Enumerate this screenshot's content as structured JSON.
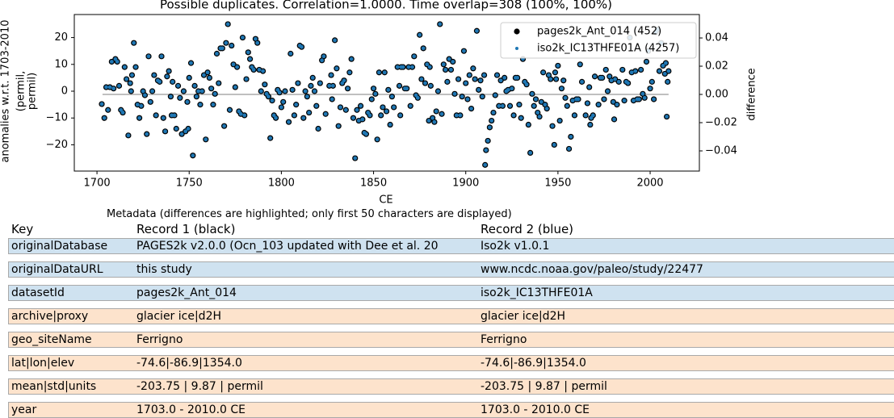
{
  "chart_data": {
    "type": "scatter",
    "title": "Possible duplicates. Correlation=1.0000. Time overlap=308 (100%, 100%)",
    "xlabel": "CE",
    "ylabel": [
      "anomalies w.r.t. 1703-2010",
      "(permil,",
      "permil)"
    ],
    "y2label": "difference",
    "xlim": [
      1687.7,
      2026.7
    ],
    "ylim": [
      -29.8,
      28.6
    ],
    "y2lim": [
      -0.0543,
      0.0566
    ],
    "xticks": [
      1700,
      1750,
      1800,
      1850,
      1900,
      1950,
      2000
    ],
    "yticks": [
      {
        "value": -20,
        "label": "−20"
      },
      {
        "value": -10,
        "label": "−10"
      },
      0,
      10,
      20
    ],
    "y2ticks": [
      {
        "value": -0.04,
        "label": "−0.04"
      },
      {
        "value": -0.02,
        "label": "−0.02"
      },
      {
        "value": 0,
        "label": "0.00"
      },
      0.02,
      0.04
    ],
    "legend": "upper right",
    "x": [
      1702.6,
      1704,
      1705,
      1706,
      1707,
      1708,
      1709,
      1710,
      1711,
      1712,
      1713,
      1714,
      1715,
      1716,
      1717,
      1718,
      1718.5,
      1719,
      1720,
      1721,
      1722,
      1723,
      1724,
      1725,
      1726,
      1727,
      1728,
      1729,
      1730,
      1731,
      1732,
      1733,
      1734,
      1735,
      1736,
      1737,
      1738,
      1739,
      1740,
      1740.5,
      1741,
      1742,
      1743,
      1744,
      1745,
      1746,
      1747,
      1748,
      1749,
      1749.5,
      1750,
      1751,
      1752,
      1753,
      1754,
      1755,
      1756,
      1757,
      1758,
      1759,
      1760,
      1761,
      1762,
      1763,
      1764,
      1765,
      1766,
      1767,
      1768,
      1769,
      1770,
      1771,
      1772,
      1773,
      1774,
      1775,
      1776,
      1777,
      1778,
      1779,
      1780,
      1781,
      1782,
      1783,
      1784,
      1785,
      1786,
      1787,
      1788,
      1789,
      1790,
      1791,
      1792,
      1793,
      1794,
      1795,
      1796,
      1797,
      1798,
      1799,
      1800,
      1801,
      1802,
      1804,
      1805,
      1806,
      1807,
      1808,
      1809,
      1810,
      1811,
      1812,
      1813,
      1814,
      1815,
      1816,
      1817,
      1818,
      1819,
      1820,
      1821,
      1822,
      1823,
      1824,
      1826,
      1827,
      1827.5,
      1828,
      1829,
      1830,
      1831,
      1832,
      1833,
      1834,
      1835,
      1836,
      1837,
      1838,
      1839,
      1840,
      1841,
      1842,
      1843,
      1844,
      1845,
      1846,
      1847,
      1848,
      1849,
      1850,
      1851,
      1852,
      1853,
      1854,
      1855,
      1856,
      1857,
      1858,
      1859,
      1860,
      1861,
      1863,
      1864,
      1864.5,
      1865,
      1866,
      1867,
      1868,
      1869,
      1870,
      1871,
      1872,
      1873,
      1874,
      1875,
      1876,
      1877,
      1878,
      1879,
      1880,
      1880.5,
      1881,
      1882,
      1883,
      1884,
      1885,
      1886,
      1887,
      1888,
      1889,
      1890,
      1891,
      1892,
      1893,
      1894,
      1895,
      1896,
      1897,
      1898,
      1899,
      1900,
      1901,
      1902,
      1903,
      1904,
      1905,
      1906,
      1907,
      1908,
      1909,
      1910,
      1910.5,
      1911,
      1912,
      1913,
      1914,
      1915,
      1916,
      1917,
      1918,
      1919,
      1920,
      1921,
      1922,
      1923,
      1924,
      1925,
      1926,
      1927,
      1928,
      1929,
      1930,
      1931,
      1932,
      1933,
      1934,
      1935,
      1936,
      1937,
      1938,
      1939,
      1940,
      1941,
      1942,
      1943,
      1944,
      1945,
      1946,
      1947,
      1948,
      1948.5,
      1949,
      1950,
      1951,
      1952,
      1953,
      1954,
      1955,
      1956,
      1957,
      1958,
      1959,
      1960,
      1961,
      1962,
      1963,
      1965,
      1966,
      1967,
      1967.5,
      1968,
      1969,
      1970,
      1972,
      1973,
      1974,
      1975,
      1976,
      1977,
      1978,
      1979,
      1980,
      1980.5,
      1981,
      1982,
      1983,
      1985,
      1986,
      1987,
      1988,
      1989,
      1990,
      1991,
      1992,
      1993,
      1994,
      1995,
      1996,
      1997,
      1998,
      1999,
      2000,
      2001,
      2002,
      2003,
      2004,
      2005,
      2006,
      2007,
      2008,
      2008.5,
      2009,
      2009.5,
      2010
    ],
    "series": [
      {
        "name": "pages2k_Ant_014 (452)",
        "color": "#000000",
        "values": [
          -4.8,
          -10,
          1.5,
          -7,
          1.5,
          11,
          1,
          12,
          11,
          2,
          -7,
          -8,
          9,
          4.5,
          -16.5,
          3,
          0,
          6,
          18,
          9,
          -5,
          -10,
          -5.5,
          0,
          -1.5,
          -16,
          13,
          -4,
          0,
          6,
          -9,
          4,
          3.5,
          13,
          -10,
          -15,
          5.5,
          7.5,
          -2,
          -9,
          3.5,
          -9,
          -14,
          2,
          -2.5,
          -16,
          0,
          -15,
          -4,
          -14,
          5,
          10.5,
          -24,
          2,
          -2,
          0,
          -5,
          0,
          6,
          -18,
          7,
          5,
          1,
          -5,
          -1,
          14,
          3,
          16,
          16,
          -13,
          18,
          25,
          -7,
          17,
          10,
          1.5,
          9,
          -7.5,
          -8.5,
          20,
          -9,
          4.5,
          14.5,
          12,
          9,
          8,
          19.5,
          18,
          8,
          0,
          7.5,
          2.5,
          -1,
          -2,
          -17.5,
          -3.5,
          -9,
          -10,
          0.5,
          -0.5,
          -6,
          -4,
          0,
          -11.5,
          14,
          0.5,
          -9,
          -5,
          3,
          17,
          16.5,
          -10,
          0,
          -2,
          -8,
          2,
          5,
          0,
          -5.5,
          -14,
          3,
          11.5,
          13,
          -8.5,
          2,
          6,
          -3,
          2,
          19,
          8.5,
          -13,
          -6,
          3,
          4,
          -7,
          1,
          7,
          12,
          -10,
          -25,
          -7,
          -11,
          -5.5,
          -10.5,
          -15.5,
          -16,
          -8,
          -9,
          -3,
          1,
          -1,
          -18,
          7,
          -9,
          -6,
          7,
          -7.5,
          0.5,
          -12.5,
          -2,
          -6,
          9,
          2,
          -9,
          9,
          9,
          1,
          1,
          9,
          -5.5,
          9,
          13,
          -1.5,
          -2.5,
          21,
          4.5,
          16,
          3,
          10,
          -11,
          9,
          2,
          -10,
          -11.5,
          -7.5,
          0,
          25,
          -8.5,
          10,
          8,
          3.5,
          12,
          8,
          11,
          -1,
          -9,
          4.5,
          -9,
          -2,
          15,
          3,
          -3,
          6,
          -6.5,
          8.5,
          4.5,
          22.5,
          0.5,
          4,
          -2,
          6,
          -27.5,
          -22,
          -18.5,
          -13.5,
          -11,
          -8,
          -1.5,
          6,
          -5.5,
          4,
          -5.5,
          5,
          0,
          0.5,
          -5.5,
          1,
          -9,
          5,
          5,
          -5,
          -10,
          12,
          3.5,
          2.5,
          -12.5,
          -23,
          -1,
          -5.5,
          -3,
          -8,
          -9.5,
          -4,
          7,
          -5,
          -6.5,
          6,
          4.5,
          -13,
          -20,
          7,
          4.5,
          9.5,
          -11,
          1,
          4,
          -2.5,
          -5.5,
          -21.5,
          -17,
          -3.5,
          -9,
          -3,
          -3,
          10,
          3.5,
          -9,
          -4.5,
          1.5,
          -12.5,
          -10,
          -9,
          5.5,
          -5,
          5,
          5,
          -3,
          8,
          0,
          5.5,
          4,
          -4,
          -10.5,
          4.5,
          -5,
          3.5,
          8,
          -3.5,
          3.5,
          3,
          20,
          7,
          -3.5,
          7.5,
          -3,
          -3,
          8,
          -1,
          -2.5,
          11,
          15,
          1,
          3.5,
          -3,
          22,
          23,
          7.5,
          18,
          9.5,
          6.5,
          10.5,
          -9.5,
          3.5,
          7.5
        ]
      },
      {
        "name": "iso2k_IC13THFE01A (4257)",
        "color": "#1f77b4",
        "values": [
          -4.8,
          -10,
          1.5,
          -7,
          1.5,
          11,
          1,
          12,
          11,
          2,
          -7,
          -8,
          9,
          4.5,
          -16.5,
          3,
          0,
          6,
          18,
          9,
          -5,
          -10,
          -5.5,
          0,
          -1.5,
          -16,
          13,
          -4,
          0,
          6,
          -9,
          4,
          3.5,
          13,
          -10,
          -15,
          5.5,
          7.5,
          -2,
          -9,
          3.5,
          -9,
          -14,
          2,
          -2.5,
          -16,
          0,
          -15,
          -4,
          -14,
          5,
          10.5,
          -24,
          2,
          -2,
          0,
          -5,
          0,
          6,
          -18,
          7,
          5,
          1,
          -5,
          -1,
          14,
          3,
          16,
          16,
          -13,
          18,
          25,
          -7,
          17,
          10,
          1.5,
          9,
          -7.5,
          -8.5,
          20,
          -9,
          4.5,
          14.5,
          12,
          9,
          8,
          19.5,
          18,
          8,
          0,
          7.5,
          2.5,
          -1,
          -2,
          -17.5,
          -3.5,
          -9,
          -10,
          0.5,
          -0.5,
          -6,
          -4,
          0,
          -11.5,
          14,
          0.5,
          -9,
          -5,
          3,
          17,
          16.5,
          -10,
          0,
          -2,
          -8,
          2,
          5,
          0,
          -5.5,
          -14,
          3,
          11.5,
          13,
          -8.5,
          2,
          6,
          -3,
          2,
          19,
          8.5,
          -13,
          -6,
          3,
          4,
          -7,
          1,
          7,
          12,
          -10,
          -25,
          -7,
          -11,
          -5.5,
          -10.5,
          -15.5,
          -16,
          -8,
          -9,
          -3,
          1,
          -1,
          -18,
          7,
          -9,
          -6,
          7,
          -7.5,
          0.5,
          -12.5,
          -2,
          -6,
          9,
          2,
          -9,
          9,
          9,
          1,
          1,
          9,
          -5.5,
          9,
          13,
          -1.5,
          -2.5,
          21,
          4.5,
          16,
          3,
          10,
          -11,
          9,
          2,
          -10,
          -11.5,
          -7.5,
          0,
          25,
          -8.5,
          10,
          8,
          3.5,
          12,
          8,
          11,
          -1,
          -9,
          4.5,
          -9,
          -2,
          15,
          3,
          -3,
          6,
          -6.5,
          8.5,
          4.5,
          22.5,
          0.5,
          4,
          -2,
          6,
          -27.5,
          -22,
          -18.5,
          -13.5,
          -11,
          -8,
          -1.5,
          6,
          -5.5,
          4,
          -5.5,
          5,
          0,
          0.5,
          -5.5,
          1,
          -9,
          5,
          5,
          -5,
          -10,
          12,
          3.5,
          2.5,
          -12.5,
          -23,
          -1,
          -5.5,
          -3,
          -8,
          -9.5,
          -4,
          7,
          -5,
          -6.5,
          6,
          4.5,
          -13,
          -20,
          7,
          4.5,
          9.5,
          -11,
          1,
          4,
          -2.5,
          -5.5,
          -21.5,
          -17,
          -3.5,
          -9,
          -3,
          -3,
          10,
          3.5,
          -9,
          -4.5,
          1.5,
          -12.5,
          -10,
          -9,
          5.5,
          -5,
          5,
          5,
          -3,
          8,
          0,
          5.5,
          4,
          -4,
          -10.5,
          4.5,
          -5,
          3.5,
          8,
          -3.5,
          3.5,
          3,
          20,
          7,
          -3.5,
          7.5,
          -3,
          -3,
          8,
          -1,
          -2.5,
          11,
          15,
          1,
          3.5,
          -3,
          22,
          23,
          7.5,
          18,
          9.5,
          6.5,
          10.5,
          -9.5,
          3.5,
          7.5
        ]
      }
    ],
    "difference": {
      "color": "#aaaaaa",
      "axis": "y2",
      "x": [
        1703,
        2010
      ],
      "values": [
        0,
        0
      ]
    }
  },
  "metadata": {
    "title": "Metadata (differences are highlighted; only first 50 characters are displayed)",
    "columns": [
      "Key",
      "Record 1 (black)",
      "Record 2 (blue)"
    ],
    "rows": [
      {
        "color": "#cfe2f0",
        "cells": [
          "originalDatabase",
          "PAGES2k v2.0.0 (Ocn_103 updated with Dee et al. 20",
          "Iso2k v1.0.1"
        ]
      },
      {
        "color": "#cfe2f0",
        "cells": [
          "originalDataURL",
          "this study",
          "www.ncdc.noaa.gov/paleo/study/22477"
        ]
      },
      {
        "color": "#cfe2f0",
        "cells": [
          "datasetId",
          "pages2k_Ant_014",
          "iso2k_IC13THFE01A"
        ]
      },
      {
        "color": "#fde3cc",
        "cells": [
          "archive|proxy",
          "glacier ice|d2H",
          "glacier ice|d2H"
        ]
      },
      {
        "color": "#fde3cc",
        "cells": [
          "geo_siteName",
          "Ferrigno",
          "Ferrigno"
        ]
      },
      {
        "color": "#fde3cc",
        "cells": [
          "lat|lon|elev",
          "-74.6|-86.9|1354.0",
          "-74.6|-86.9|1354.0"
        ]
      },
      {
        "color": "#fde3cc",
        "cells": [
          "mean|std|units",
          "-203.75 | 9.87 | permil",
          "-203.75 | 9.87 | permil"
        ]
      },
      {
        "color": "#fde3cc",
        "cells": [
          "year",
          "1703.0 - 2010.0 CE",
          "1703.0 - 2010.0 CE"
        ]
      }
    ]
  }
}
